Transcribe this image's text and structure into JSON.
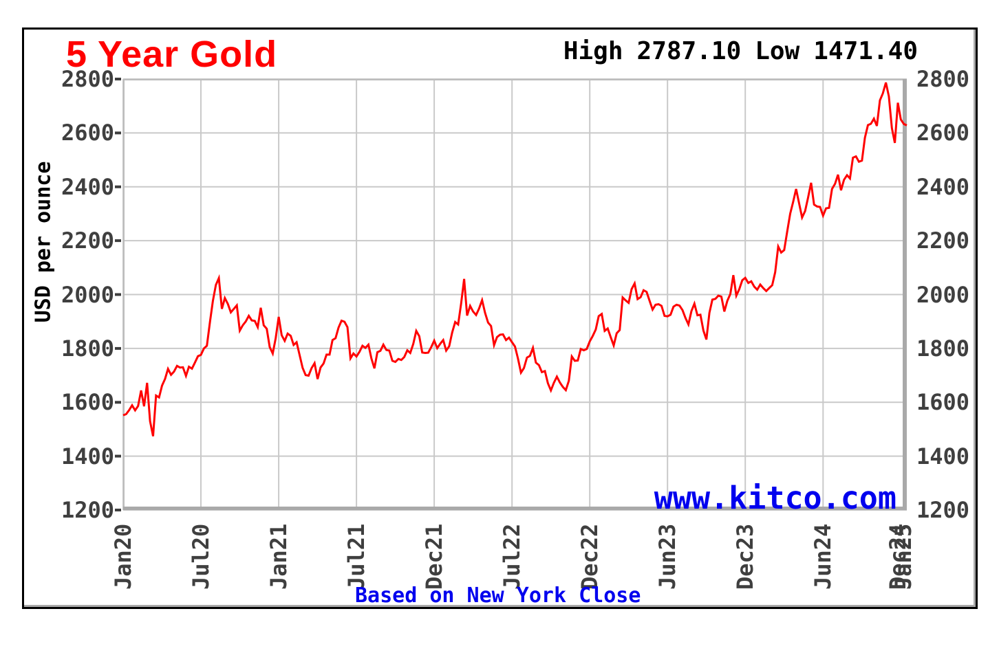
{
  "header": {
    "title": "5 Year Gold",
    "high_label": "High",
    "high_value": "2787.10",
    "low_label": "Low",
    "low_value": "1471.40"
  },
  "watermark": "www.kitco.com",
  "caption": "Based on New York Close",
  "colors": {
    "title": "#ff0000",
    "line": "#ff0000",
    "blue_text": "#0000ee",
    "tick_text": "#3f3f3f",
    "grid": "#c9c9c9",
    "plot_border_light": "#bdbdbd",
    "plot_border_heavy": "#a9a9a9",
    "frame": "#000000"
  },
  "chart_data": {
    "type": "line",
    "title": "5 Year Gold",
    "xlabel": "",
    "ylabel": "USD per ounce",
    "ylim": [
      1200,
      2800
    ],
    "y_ticks": [
      2800,
      2600,
      2400,
      2200,
      2000,
      1800,
      1600,
      1400,
      1200
    ],
    "grid": "on",
    "legend_position": "none",
    "annotations": {
      "high": 2787.1,
      "low": 1471.4
    },
    "x_unit": "weeks since Jan 2020",
    "weeks_total": 262,
    "x_ticks": [
      {
        "label": "Jan20",
        "week": 0,
        "grid": true
      },
      {
        "label": "Jul20",
        "week": 26,
        "grid": true
      },
      {
        "label": "Jan21",
        "week": 52,
        "grid": true
      },
      {
        "label": "Jul21",
        "week": 78,
        "grid": true
      },
      {
        "label": "Dec21",
        "week": 104,
        "grid": true
      },
      {
        "label": "Jul22",
        "week": 130,
        "grid": true
      },
      {
        "label": "Dec22",
        "week": 156,
        "grid": true
      },
      {
        "label": "Jun23",
        "week": 182,
        "grid": true
      },
      {
        "label": "Dec23",
        "week": 208,
        "grid": true
      },
      {
        "label": "Jun24",
        "week": 234,
        "grid": true
      },
      {
        "label": "Dec24",
        "week": 259,
        "grid": false
      },
      {
        "label": "Jan25",
        "week": 260.8,
        "grid": false
      }
    ],
    "series": [
      {
        "name": "Gold price, weekly New York close (USD per ounce)",
        "color": "#ff0000",
        "values": [
          1552,
          1556,
          1571,
          1589,
          1570,
          1586,
          1644,
          1585,
          1672,
          1530,
          1474,
          1625,
          1618,
          1662,
          1687,
          1724,
          1702,
          1714,
          1735,
          1729,
          1730,
          1698,
          1732,
          1725,
          1747,
          1771,
          1776,
          1800,
          1810,
          1897,
          1976,
          2036,
          2061,
          1947,
          1987,
          1965,
          1934,
          1947,
          1960,
          1866,
          1886,
          1900,
          1921,
          1904,
          1902,
          1879,
          1951,
          1886,
          1873,
          1805,
          1781,
          1838,
          1917,
          1849,
          1828,
          1855,
          1847,
          1813,
          1823,
          1775,
          1728,
          1701,
          1699,
          1727,
          1745,
          1686,
          1729,
          1744,
          1777,
          1777,
          1831,
          1838,
          1877,
          1903,
          1899,
          1879,
          1763,
          1781,
          1770,
          1787,
          1810,
          1802,
          1814,
          1763,
          1726,
          1786,
          1791,
          1814,
          1794,
          1792,
          1754,
          1750,
          1761,
          1757,
          1768,
          1793,
          1783,
          1817,
          1865,
          1845,
          1785,
          1783,
          1784,
          1805,
          1829,
          1801,
          1817,
          1831,
          1792,
          1808,
          1859,
          1898,
          1889,
          1966,
          2058,
          1922,
          1958,
          1937,
          1924,
          1948,
          1979,
          1932,
          1896,
          1883,
          1812,
          1842,
          1851,
          1852,
          1831,
          1840,
          1823,
          1807,
          1763,
          1710,
          1727,
          1766,
          1772,
          1802,
          1747,
          1738,
          1712,
          1716,
          1671,
          1644,
          1672,
          1695,
          1674,
          1657,
          1645,
          1680,
          1770,
          1754,
          1755,
          1798,
          1793,
          1798,
          1826,
          1846,
          1870,
          1920,
          1928,
          1865,
          1874,
          1842,
          1811,
          1856,
          1868,
          1989,
          1978,
          1969,
          2020,
          2041,
          1983,
          1990,
          2016,
          2010,
          1977,
          1944,
          1962,
          1964,
          1958,
          1921,
          1919,
          1925,
          1955,
          1962,
          1959,
          1942,
          1913,
          1889,
          1939,
          1966,
          1923,
          1925,
          1866,
          1833,
          1932,
          1981,
          1984,
          1996,
          1992,
          1937,
          1977,
          2002,
          2072,
          1996,
          2020,
          2053,
          2062,
          2043,
          2049,
          2029,
          2018,
          2037,
          2024,
          2013,
          2024,
          2035,
          2083,
          2178,
          2156,
          2165,
          2233,
          2300,
          2344,
          2392,
          2338,
          2286,
          2310,
          2360,
          2415,
          2334,
          2327,
          2325,
          2293,
          2320,
          2322,
          2392,
          2411,
          2445,
          2387,
          2426,
          2443,
          2431,
          2508,
          2513,
          2493,
          2497,
          2582,
          2629,
          2634,
          2653,
          2626,
          2721,
          2747,
          2787,
          2736,
          2618,
          2563,
          2712,
          2650,
          2633,
          2628
        ]
      }
    ]
  }
}
